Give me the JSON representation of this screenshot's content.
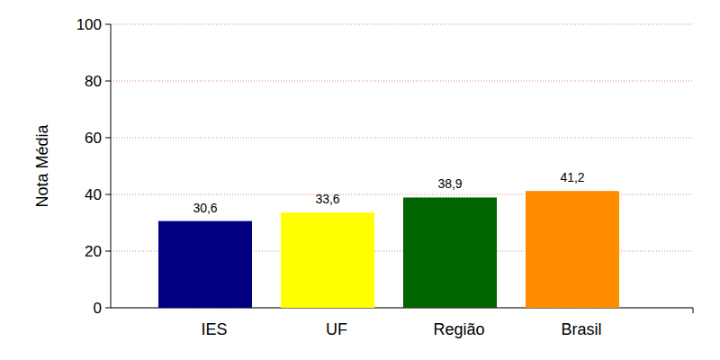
{
  "chart_data": {
    "type": "bar",
    "y_label": "Nota Média",
    "categories": [
      "IES",
      "UF",
      "Região",
      "Brasil"
    ],
    "values": [
      30.6,
      33.6,
      38.9,
      41.2
    ],
    "value_labels": [
      "30,6",
      "33,6",
      "38,9",
      "41,2"
    ],
    "colors": [
      "#000080",
      "#ffff00",
      "#006400",
      "#ff8c00"
    ],
    "ylim": [
      0,
      100
    ],
    "yticks": [
      0,
      20,
      40,
      60,
      80,
      100
    ],
    "grid": true,
    "data_labels": true
  }
}
